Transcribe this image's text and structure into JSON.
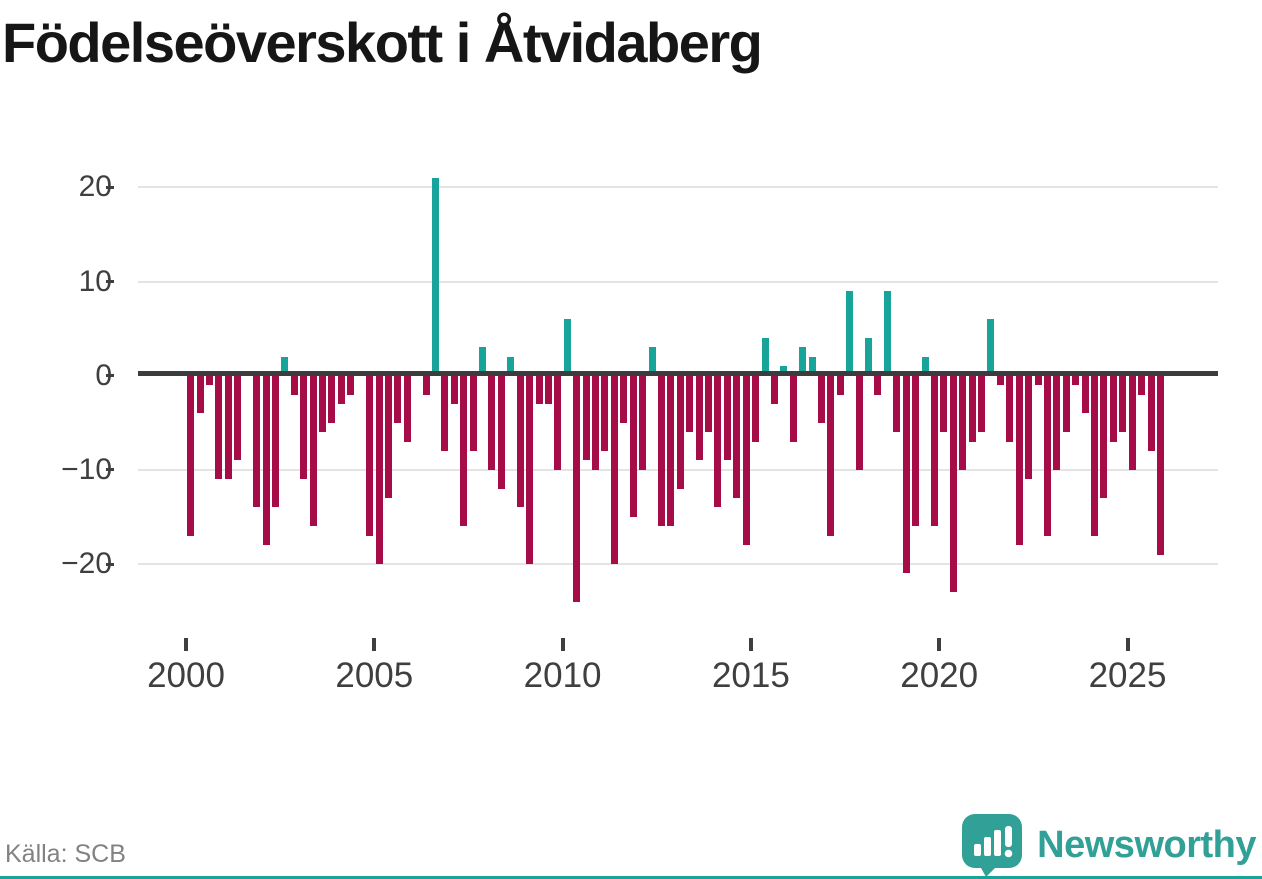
{
  "title": "Födelseöverskott i Åtvidaberg",
  "source": "Källa: SCB",
  "brand": {
    "name": "Newsworthy"
  },
  "colors": {
    "positive": "#18a39b",
    "negative": "#a50c48",
    "zero_line": "#3c3c3c",
    "gridline": "#e4e4e4",
    "axis_text": "#3f3f3f",
    "source_text": "#828282",
    "brand_teal": "#31a096",
    "title_text": "#161616"
  },
  "chart_data": {
    "type": "bar",
    "title": "Födelseöverskott i Åtvidaberg",
    "frequency": "quarterly",
    "x_start": "2000Q1",
    "x_end": "2025Q4",
    "xtick_labels": [
      "2000",
      "2005",
      "2010",
      "2015",
      "2020",
      "2025"
    ],
    "ytick_values": [
      20,
      10,
      0,
      -10,
      -20
    ],
    "ytick_labels": [
      "20",
      "10",
      "0",
      "−10",
      "−20"
    ],
    "ylim": [
      -24,
      21
    ],
    "grid": "horizontal-only",
    "legend": "none",
    "values": [
      -17,
      -4,
      -1,
      -11,
      -11,
      -9,
      0,
      -14,
      -18,
      -14,
      2,
      -2,
      -11,
      -16,
      -6,
      -5,
      -3,
      -2,
      0,
      -17,
      -20,
      -13,
      -5,
      -7,
      0,
      -2,
      21,
      -8,
      -3,
      -16,
      -8,
      3,
      -10,
      -12,
      2,
      -14,
      -20,
      -3,
      -3,
      -10,
      6,
      -24,
      -9,
      -10,
      -8,
      -20,
      -5,
      -15,
      -10,
      3,
      -16,
      -16,
      -12,
      -6,
      -9,
      -6,
      -14,
      -9,
      -13,
      -18,
      -7,
      4,
      -3,
      1,
      -7,
      3,
      2,
      -5,
      -17,
      -2,
      9,
      -10,
      4,
      -2,
      9,
      -6,
      -21,
      -16,
      2,
      -16,
      -6,
      -23,
      -10,
      -7,
      -6,
      6,
      -1,
      -7,
      -18,
      -11,
      -1,
      -17,
      -10,
      -6,
      -1,
      -4,
      -17,
      -13,
      -7,
      -6,
      -10,
      -2,
      -8,
      -19
    ]
  }
}
